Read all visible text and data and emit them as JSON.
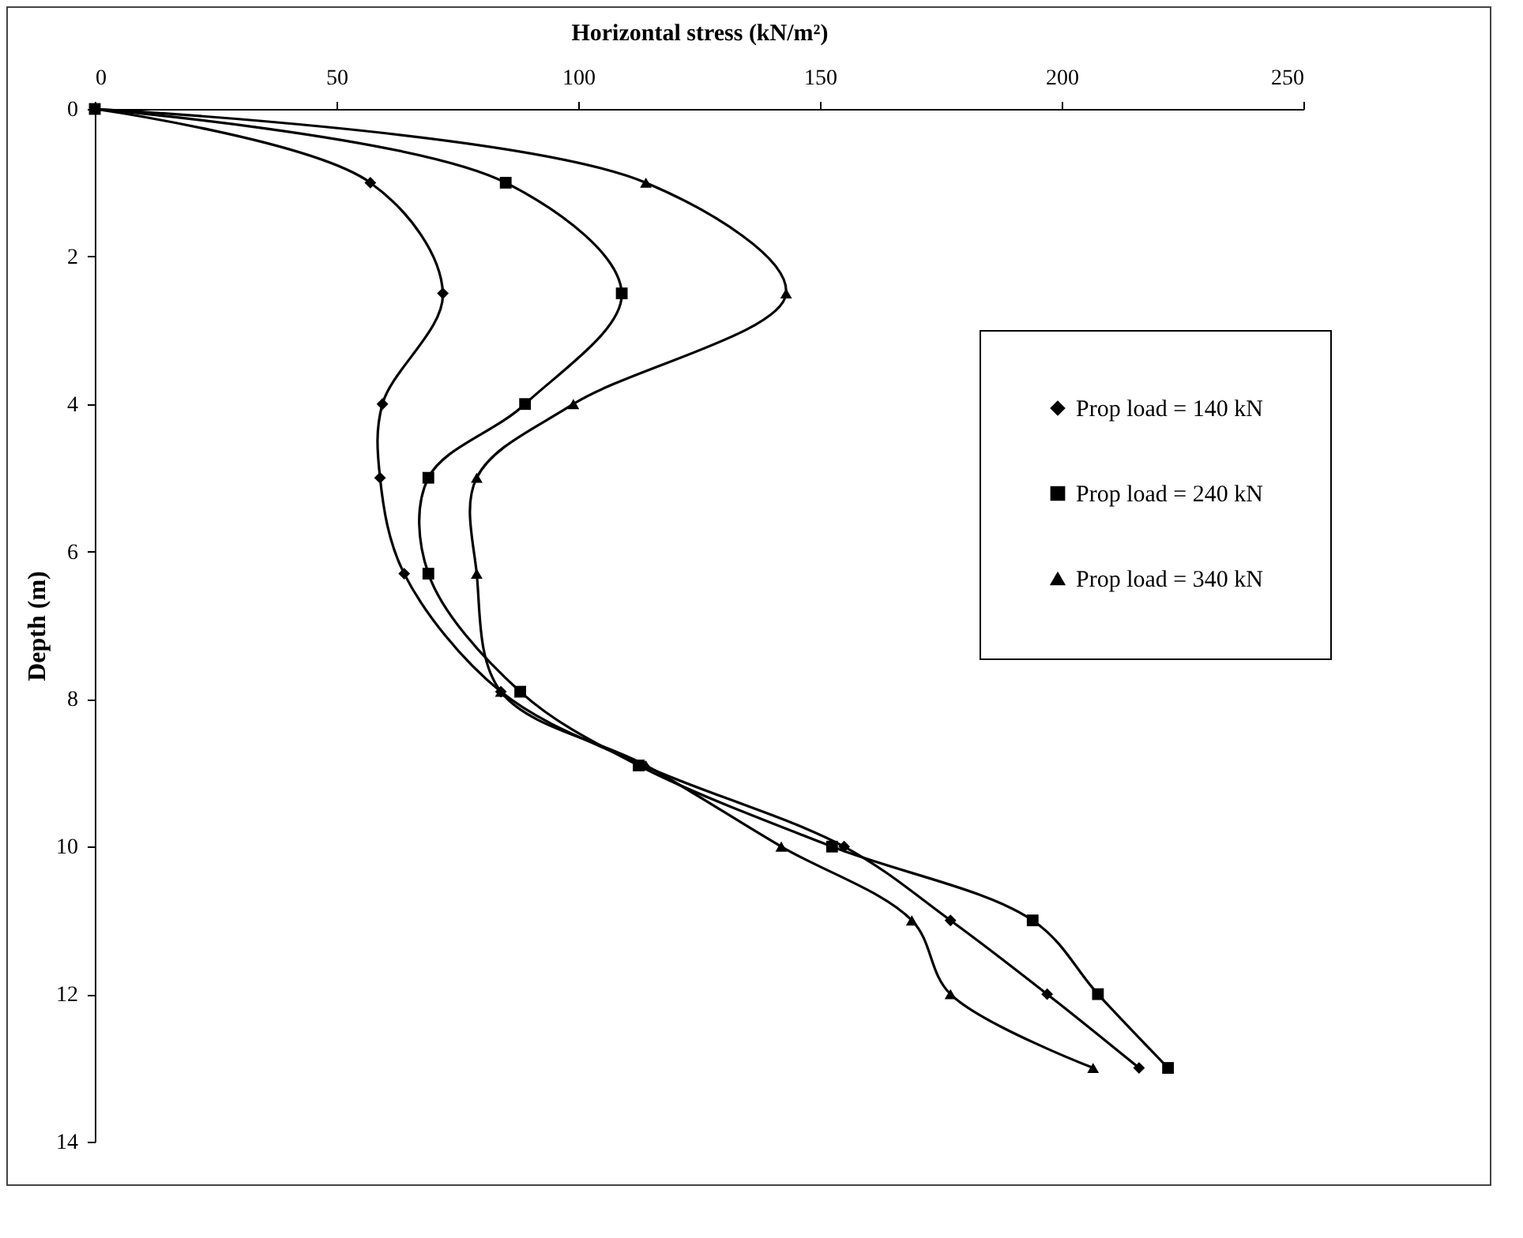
{
  "chart_data": {
    "type": "line",
    "xlabel": "Horizontal stress (kN/m²)",
    "ylabel": "Depth (m)",
    "xlim": [
      0,
      250
    ],
    "xticks": [
      0,
      50,
      100,
      150,
      200,
      250
    ],
    "ylim": [
      14,
      0
    ],
    "yticks": [
      0,
      2,
      4,
      6,
      8,
      10,
      12,
      14
    ],
    "grid": false,
    "legend": "right",
    "line_style": "solid",
    "series": [
      {
        "name": "Prop load = 140 kN",
        "color": "#000000",
        "marker": "diamond",
        "x": [
          0,
          57,
          72,
          59.5,
          59,
          64,
          84,
          113.5,
          155,
          177,
          197,
          216
        ],
        "values": [
          0,
          1,
          2.5,
          4,
          5,
          6.3,
          7.9,
          8.9,
          10,
          11,
          12,
          13
        ]
      },
      {
        "name": "Prop load = 240 kN",
        "color": "#000000",
        "marker": "square",
        "x": [
          0,
          85,
          109,
          89,
          69,
          69,
          88,
          112.5,
          152.5,
          194,
          207.5,
          222
        ],
        "values": [
          0,
          1,
          2.5,
          4,
          5,
          6.3,
          7.9,
          8.9,
          10,
          11,
          12,
          13
        ]
      },
      {
        "name": "Prop load = 340 kN",
        "color": "#000000",
        "marker": "triangle",
        "x": [
          0,
          114,
          143,
          99,
          79,
          79,
          84,
          114,
          142,
          169,
          177,
          206.5
        ],
        "values": [
          0,
          1,
          2.5,
          4,
          5,
          6.3,
          7.9,
          8.9,
          10,
          11,
          12,
          13
        ]
      }
    ]
  }
}
